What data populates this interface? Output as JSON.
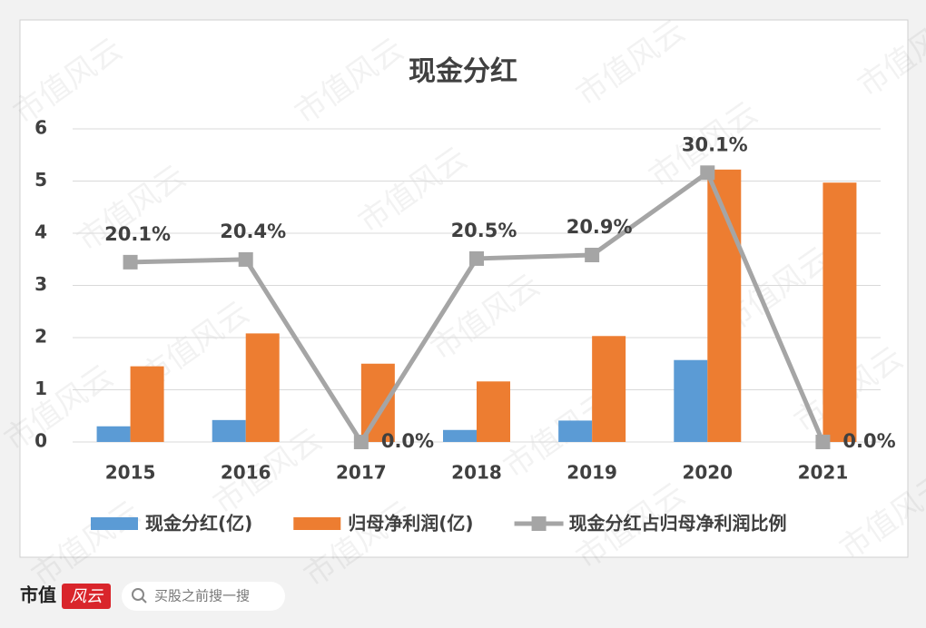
{
  "chart_data": {
    "type": "bar-line",
    "title": "现金分红",
    "categories": [
      "2015",
      "2016",
      "2017",
      "2018",
      "2019",
      "2020",
      "2021"
    ],
    "series": [
      {
        "name": "现金分红(亿)",
        "color": "#5b9bd5",
        "type": "bar",
        "values": [
          0.3,
          0.42,
          0,
          0.23,
          0.41,
          1.57,
          0
        ]
      },
      {
        "name": "归母净利润(亿)",
        "color": "#ed7d31",
        "type": "bar",
        "values": [
          1.45,
          2.08,
          1.5,
          1.16,
          2.03,
          5.22,
          4.97
        ]
      },
      {
        "name": "现金分红占归母净利润比例",
        "color": "#a5a5a5",
        "type": "line",
        "axis": "y2",
        "values": [
          20.1,
          20.4,
          0,
          20.5,
          20.9,
          30.1,
          0
        ],
        "value_labels": [
          "20.1%",
          "20.4%",
          "0.0%",
          "20.5%",
          "20.9%",
          "30.1%",
          "0.0%"
        ]
      }
    ],
    "ylim": [
      0,
      6
    ],
    "yticks": [
      0,
      1,
      2,
      3,
      4,
      5,
      6
    ],
    "y2lim": [
      0,
      35
    ],
    "grid": true
  },
  "watermark": "市值风云",
  "footer": {
    "brand": "市值",
    "badge": "风云",
    "search": "买股之前搜一搜"
  }
}
